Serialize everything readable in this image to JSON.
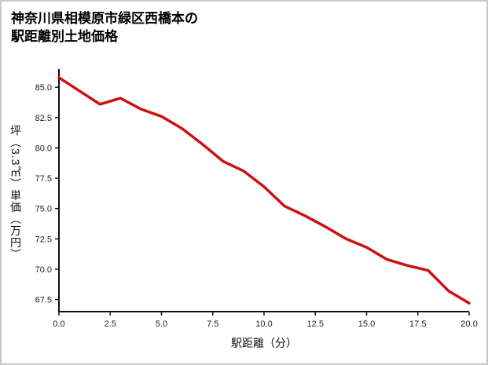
{
  "page": {
    "title_line1": "神奈川県相模原市緑区西橋本の",
    "title_line2": "駅距離別土地価格"
  },
  "chart_data": {
    "type": "line",
    "title": "神奈川県相模原市緑区西橋本の駅距離別土地価格",
    "xlabel": "駅距離（分）",
    "ylabel": "坪（3.3㎡）単価（万円）",
    "x": [
      0,
      1,
      2,
      3,
      4,
      5,
      6,
      7,
      8,
      9,
      10,
      11,
      12,
      13,
      14,
      15,
      16,
      17,
      18,
      19,
      20
    ],
    "y": [
      85.8,
      84.7,
      83.6,
      84.1,
      83.2,
      82.6,
      81.6,
      80.3,
      78.9,
      78.1,
      76.8,
      75.2,
      74.4,
      73.5,
      72.5,
      71.8,
      70.8,
      70.3,
      69.9,
      68.2,
      67.2
    ],
    "xticks": [
      0.0,
      2.5,
      5.0,
      7.5,
      10.0,
      12.5,
      15.0,
      17.5,
      20.0
    ],
    "yticks": [
      67.5,
      70.0,
      72.5,
      75.0,
      77.5,
      80.0,
      82.5,
      85.0
    ],
    "xlim": [
      0,
      20
    ],
    "ylim": [
      66.5,
      86.5
    ],
    "grid": false,
    "legend": "none",
    "line_color": "#cc1111",
    "axis_color": "#111111"
  }
}
